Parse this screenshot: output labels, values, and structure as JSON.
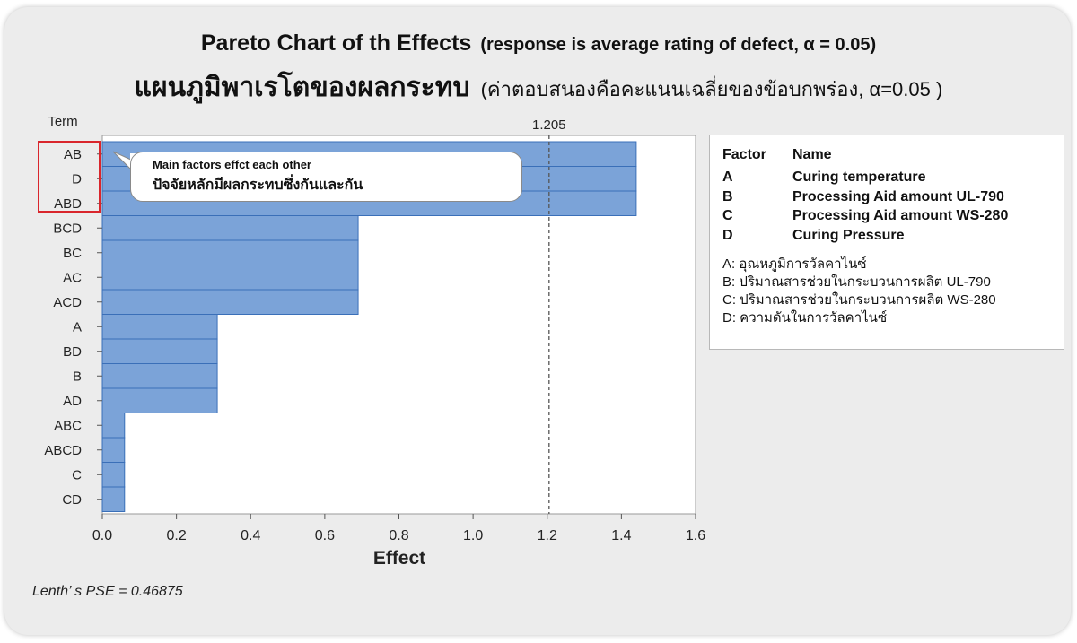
{
  "title": {
    "en_main": "Pareto Chart of th Effects",
    "en_sub": "(response is average rating of defect, α = 0.05)",
    "th_main": "แผนภูมิพาเรโตของผลกระทบ",
    "th_sub": "(ค่าตอบสนองคือคะแนนเฉลี่ยของข้อบกพร่อง, α=0.05 )"
  },
  "chart_data": {
    "type": "bar",
    "orientation": "horizontal",
    "y_axis_title": "Term",
    "xlabel": "Effect",
    "categories": [
      "AB",
      "D",
      "ABD",
      "BCD",
      "BC",
      "AC",
      "ACD",
      "A",
      "BD",
      "B",
      "AD",
      "ABC",
      "ABCD",
      "C",
      "CD"
    ],
    "values": [
      1.44,
      1.44,
      1.44,
      0.69,
      0.69,
      0.69,
      0.69,
      0.31,
      0.31,
      0.31,
      0.31,
      0.06,
      0.06,
      0.06,
      0.06
    ],
    "xlim": [
      0.0,
      1.6
    ],
    "xticks": [
      "0.0",
      "0.2",
      "0.4",
      "0.6",
      "0.8",
      "1.0",
      "1.2",
      "1.4",
      "1.6"
    ],
    "reference_line": {
      "value": 1.205,
      "label": "1.205"
    },
    "bar_color": "#7ba3d8",
    "bar_edge_color": "#3a6fb8",
    "grid": false
  },
  "callout": {
    "en": "Main factors effct each other",
    "th": "ปัจจัยหลักมีผลกระทบซึ่งกันและกัน"
  },
  "legend": {
    "header_factor": "Factor",
    "header_name": "Name",
    "factors": [
      {
        "code": "A",
        "name": "Curing temperature"
      },
      {
        "code": "B",
        "name": "Processing Aid amount UL-790"
      },
      {
        "code": "C",
        "name": "Processing Aid amount WS-280"
      },
      {
        "code": "D",
        "name": "Curing Pressure"
      }
    ],
    "thai_factors": [
      "A: อุณหภูมิการวัลคาไนซ์",
      "B: ปริมาณสารช่วยในกระบวนการผลิต UL-790",
      "C: ปริมาณสารช่วยในกระบวนการผลิต WS-280",
      "D: ความดันในการวัลคาไนซ์"
    ]
  },
  "footnote": "Lenth’ s PSE = 0.46875",
  "colors": {
    "panel_bg": "#ececec",
    "plot_border": "#9a9a9a",
    "highlight_box": "#d9262c",
    "reference_line": "#555555"
  }
}
